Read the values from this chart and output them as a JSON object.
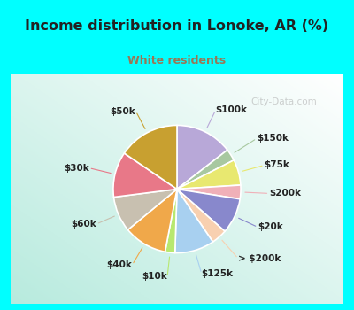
{
  "title": "Income distribution in Lonoke, AR (%)",
  "subtitle": "White residents",
  "bg_cyan": "#00FFFF",
  "subtitle_color": "#997755",
  "title_color": "#222222",
  "slices": [
    {
      "label": "$100k",
      "value": 14.5,
      "color": "#b8a8d8"
    },
    {
      "label": "$150k",
      "value": 3.0,
      "color": "#a8c8a0"
    },
    {
      "label": "$75k",
      "value": 6.5,
      "color": "#e8e870"
    },
    {
      "label": "$200k",
      "value": 3.5,
      "color": "#f0b0b8"
    },
    {
      "label": "$20k",
      "value": 9.0,
      "color": "#8888cc"
    },
    {
      "label": "> $200k",
      "value": 4.0,
      "color": "#f8d0b0"
    },
    {
      "label": "$125k",
      "value": 10.0,
      "color": "#a8d0f0"
    },
    {
      "label": "$10k",
      "value": 2.5,
      "color": "#b8e870"
    },
    {
      "label": "$40k",
      "value": 11.0,
      "color": "#f0a84a"
    },
    {
      "label": "$60k",
      "value": 9.0,
      "color": "#c8c0b0"
    },
    {
      "label": "$30k",
      "value": 11.5,
      "color": "#e87888"
    },
    {
      "label": "$50k",
      "value": 15.5,
      "color": "#c8a030"
    }
  ],
  "label_fontsize": 7.5,
  "watermark": "City-Data.com"
}
